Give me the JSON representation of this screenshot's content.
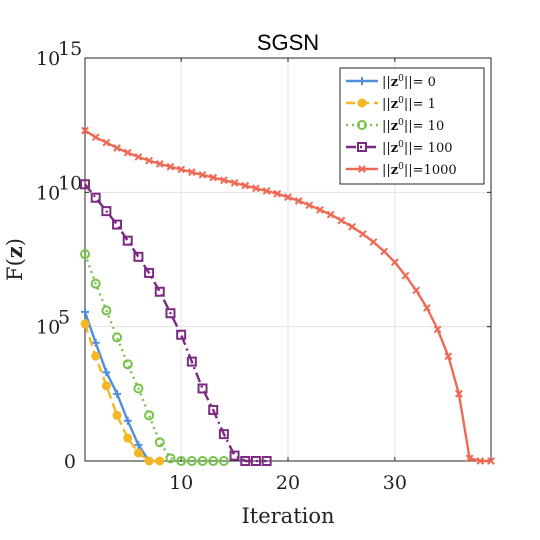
{
  "chart_data": {
    "type": "line",
    "title": "SGSN",
    "xlabel": "Iteration",
    "ylabel": "F(z)",
    "xlim": [
      1,
      39
    ],
    "ylim_log_decades": [
      0,
      15
    ],
    "y_scale": "symlog-like",
    "x_ticks": [
      10,
      20,
      30
    ],
    "y_ticks": [
      {
        "label": "0",
        "decade": 0
      },
      {
        "label": "10",
        "exp": "5",
        "decade": 5
      },
      {
        "label": "10",
        "exp": "10",
        "decade": 10
      },
      {
        "label": "10",
        "exp": "15",
        "decade": 15
      }
    ],
    "grid": true,
    "legend_position": "top-right",
    "series": [
      {
        "name": "||z0||= 0",
        "legend": {
          "pre": "||",
          "z": "z",
          "sup": "0",
          "post": "||= 0"
        },
        "color": "#4f8fdc",
        "dash": "",
        "marker": "plus",
        "x": [
          1,
          2,
          3,
          4,
          5,
          6,
          7
        ],
        "y_log10": [
          5.55,
          4.4,
          3.3,
          2.5,
          1.5,
          0.6,
          0
        ]
      },
      {
        "name": "||z0||= 1",
        "legend": {
          "pre": "||",
          "z": "z",
          "sup": "0",
          "post": "||= 1"
        },
        "color": "#f4b622",
        "dash": "9,5",
        "marker": "dot",
        "x": [
          1,
          2,
          3,
          4,
          5,
          6,
          7,
          8
        ],
        "y_log10": [
          5.1,
          3.9,
          2.8,
          1.7,
          0.85,
          0.3,
          0,
          0
        ]
      },
      {
        "name": "||z0||= 10",
        "legend": {
          "pre": "||",
          "z": "z",
          "sup": "0",
          "post": "||= 10"
        },
        "color": "#77c24a",
        "dash": "2,4",
        "marker": "circle",
        "x": [
          1,
          2,
          3,
          4,
          5,
          6,
          7,
          8,
          9,
          10,
          11,
          12,
          13,
          14
        ],
        "y_log10": [
          7.7,
          6.6,
          5.6,
          4.6,
          3.6,
          2.7,
          1.7,
          0.7,
          0.1,
          0,
          0,
          0,
          0,
          0
        ]
      },
      {
        "name": "||z0||= 100",
        "legend": {
          "pre": "||",
          "z": "z",
          "sup": "0",
          "post": "||= 100"
        },
        "color": "#7b2b82",
        "dash": "10,4,2,4",
        "marker": "square",
        "x": [
          1,
          2,
          3,
          4,
          5,
          6,
          7,
          8,
          9,
          10,
          11,
          12,
          13,
          14,
          15,
          16,
          17,
          18
        ],
        "y_log10": [
          10.3,
          9.8,
          9.3,
          8.8,
          8.2,
          7.6,
          7.0,
          6.3,
          5.5,
          4.7,
          3.7,
          2.7,
          1.9,
          1.0,
          0.2,
          0,
          0,
          0
        ]
      },
      {
        "name": "||z0||=1000",
        "legend": {
          "pre": "||",
          "z": "z",
          "sup": "0",
          "post": "||=1000"
        },
        "color": "#ee6a55",
        "dash": "",
        "marker": "x",
        "x": [
          1,
          2,
          3,
          4,
          5,
          6,
          7,
          8,
          9,
          10,
          11,
          12,
          13,
          14,
          15,
          16,
          17,
          18,
          19,
          20,
          21,
          22,
          23,
          24,
          25,
          26,
          27,
          28,
          29,
          30,
          31,
          32,
          33,
          34,
          35,
          36,
          37,
          38,
          39
        ],
        "y_log10": [
          12.3,
          12.05,
          11.85,
          11.65,
          11.48,
          11.32,
          11.18,
          11.06,
          10.95,
          10.85,
          10.75,
          10.65,
          10.55,
          10.45,
          10.35,
          10.25,
          10.15,
          10.05,
          9.95,
          9.82,
          9.68,
          9.52,
          9.35,
          9.17,
          8.95,
          8.72,
          8.45,
          8.15,
          7.8,
          7.4,
          6.9,
          6.35,
          5.7,
          4.9,
          3.9,
          2.5,
          0.1,
          0,
          0
        ]
      }
    ]
  }
}
